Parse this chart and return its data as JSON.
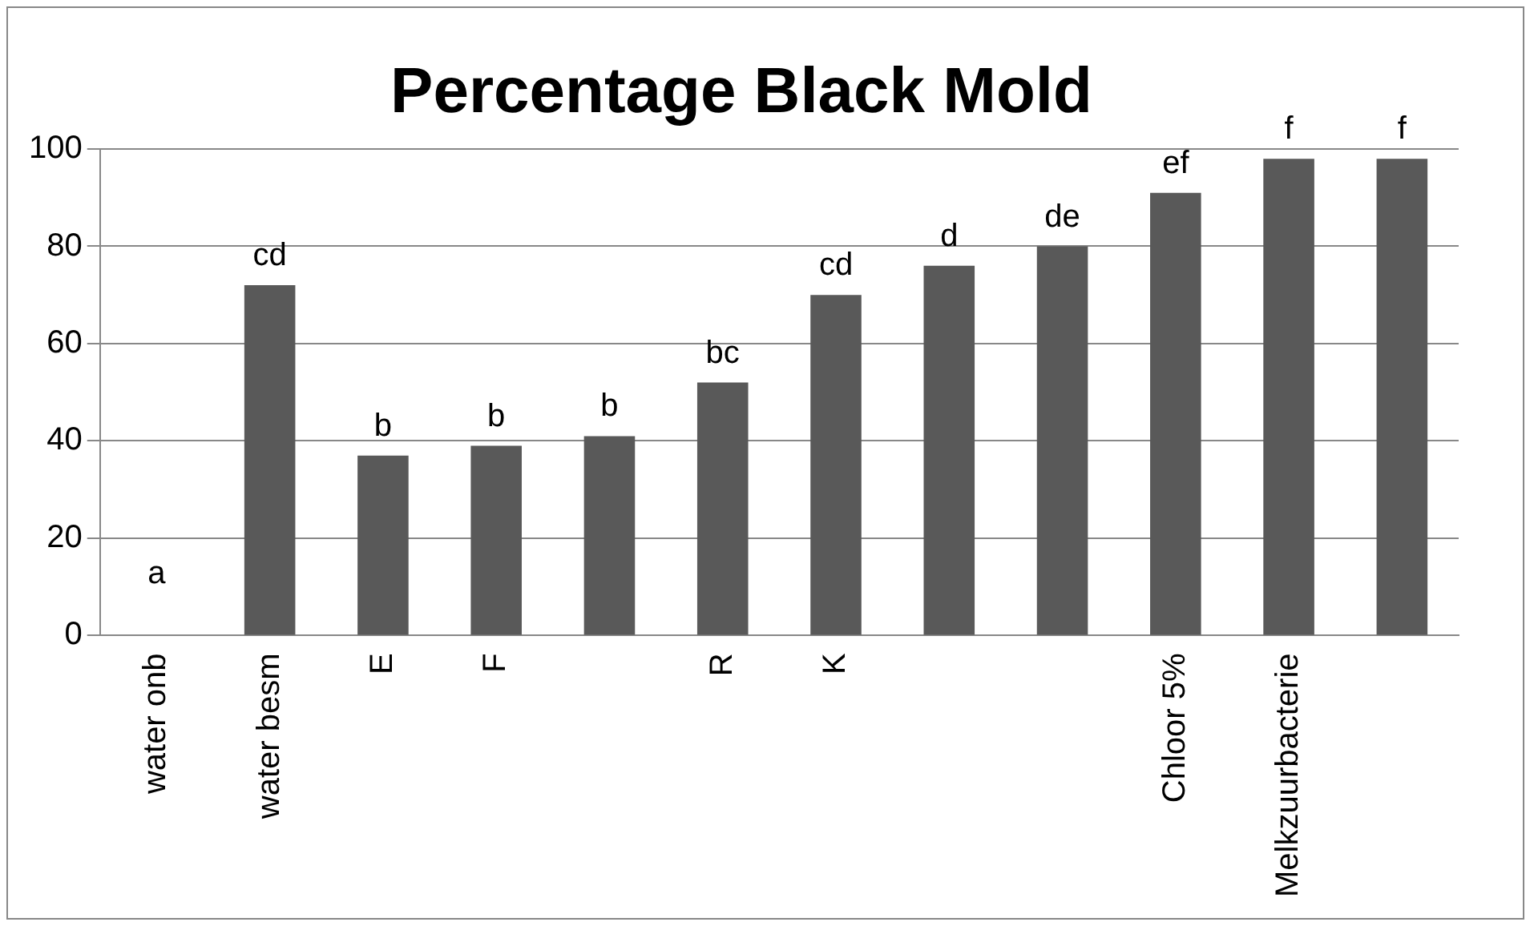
{
  "chart_data": {
    "type": "bar",
    "title": "Percentage Black Mold",
    "categories": [
      "water onb",
      "water besm",
      "E",
      "F",
      null,
      "R",
      "K",
      null,
      null,
      "Chloor 5%",
      "Melkzuurbacterie",
      null
    ],
    "values": [
      0,
      72,
      37,
      39,
      41,
      52,
      70,
      76,
      80,
      91,
      98,
      98
    ],
    "color": "#595959",
    "ylim": [
      0,
      100
    ],
    "yticks": [
      0,
      20,
      40,
      60,
      80,
      100
    ],
    "grid": "y",
    "annotations": [
      "a",
      "cd",
      "b",
      "b",
      "b",
      "bc",
      "cd",
      "d",
      "de",
      "ef",
      "f",
      "f"
    ]
  }
}
